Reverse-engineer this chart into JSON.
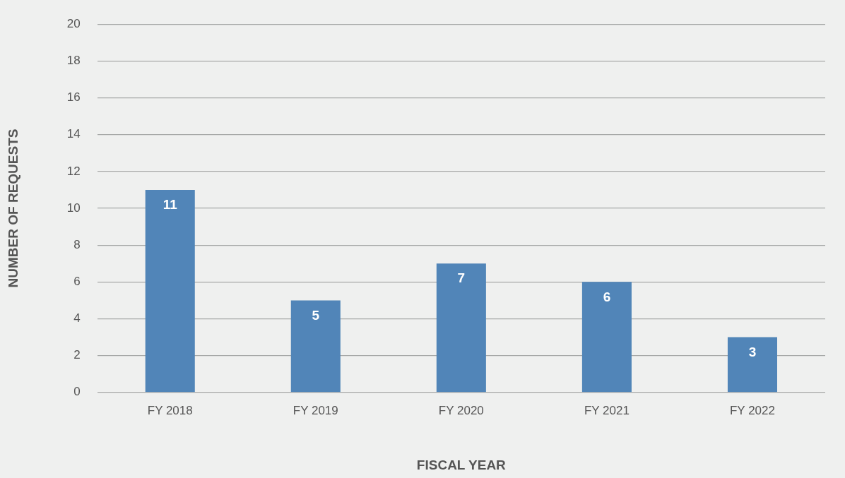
{
  "chart_data": {
    "type": "bar",
    "xlabel": "FISCAL YEAR",
    "ylabel": "NUMBER OF REQUESTS",
    "categories": [
      "FY 2018",
      "FY 2019",
      "FY 2020",
      "FY 2021",
      "FY 2022"
    ],
    "values": [
      11,
      5,
      7,
      6,
      3
    ],
    "color": "#5185b8",
    "ylim": [
      0,
      20
    ],
    "yticks": [
      0,
      2,
      4,
      6,
      8,
      10,
      12,
      14,
      16,
      18,
      20
    ],
    "grid": "y",
    "legend": false,
    "data_labels": true
  }
}
